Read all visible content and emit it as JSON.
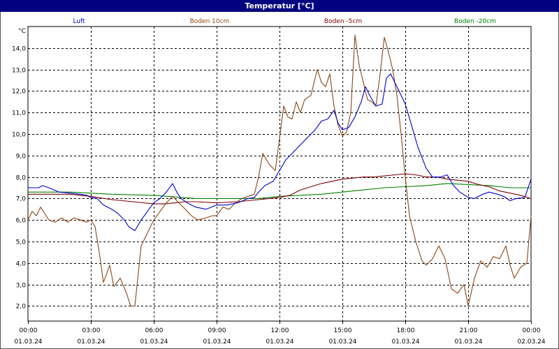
{
  "window": {
    "title": "Temperatur [°C]"
  },
  "chart_data": {
    "type": "line",
    "title": "Temperatur [°C]",
    "ylabel": "°C",
    "xlabel": "",
    "ylim": [
      1.3,
      15.0
    ],
    "xlim": [
      0,
      24
    ],
    "grid": true,
    "legend_position": "top",
    "y_ticks": [
      {
        "v": 2.0,
        "label": "2,0"
      },
      {
        "v": 3.0,
        "label": "3,0"
      },
      {
        "v": 4.0,
        "label": "4,0"
      },
      {
        "v": 5.0,
        "label": "5,0"
      },
      {
        "v": 6.0,
        "label": "6,0"
      },
      {
        "v": 7.0,
        "label": "7,0"
      },
      {
        "v": 8.0,
        "label": "8,0"
      },
      {
        "v": 9.0,
        "label": "9,0"
      },
      {
        "v": 10.0,
        "label": "10,0"
      },
      {
        "v": 11.0,
        "label": "11,0"
      },
      {
        "v": 12.0,
        "label": "12,0"
      },
      {
        "v": 13.0,
        "label": "13,0"
      },
      {
        "v": 14.0,
        "label": "14,0"
      }
    ],
    "x_ticks": [
      {
        "v": 0,
        "time": "00:00",
        "date": "01.03.24"
      },
      {
        "v": 3,
        "time": "03:00",
        "date": "01.03.24"
      },
      {
        "v": 6,
        "time": "06:00",
        "date": "01.03.24"
      },
      {
        "v": 9,
        "time": "09:00",
        "date": "01.03.24"
      },
      {
        "v": 12,
        "time": "12:00",
        "date": "01.03.24"
      },
      {
        "v": 15,
        "time": "15:00",
        "date": "01.03.24"
      },
      {
        "v": 18,
        "time": "18:00",
        "date": "01.03.24"
      },
      {
        "v": 21,
        "time": "21:00",
        "date": "01.03.24"
      },
      {
        "v": 24,
        "time": "00:00",
        "date": "02.03.24"
      }
    ],
    "series": [
      {
        "name": "Luft",
        "color": "#0000cc",
        "points": [
          [
            0,
            7.5
          ],
          [
            0.5,
            7.5
          ],
          [
            0.7,
            7.6
          ],
          [
            1.0,
            7.5
          ],
          [
            1.5,
            7.3
          ],
          [
            2.0,
            7.25
          ],
          [
            2.5,
            7.2
          ],
          [
            2.8,
            7.15
          ],
          [
            3.0,
            7.05
          ],
          [
            3.3,
            7.0
          ],
          [
            3.6,
            6.7
          ],
          [
            4.0,
            6.5
          ],
          [
            4.3,
            6.3
          ],
          [
            4.6,
            6.0
          ],
          [
            4.8,
            5.7
          ],
          [
            5.1,
            5.5
          ],
          [
            5.4,
            6.0
          ],
          [
            5.7,
            6.4
          ],
          [
            6.0,
            6.8
          ],
          [
            6.3,
            7.0
          ],
          [
            6.6,
            7.3
          ],
          [
            6.9,
            7.7
          ],
          [
            7.1,
            7.3
          ],
          [
            7.3,
            7.0
          ],
          [
            7.6,
            6.8
          ],
          [
            8.0,
            6.6
          ],
          [
            8.5,
            6.5
          ],
          [
            9.0,
            6.7
          ],
          [
            9.5,
            6.7
          ],
          [
            10.0,
            6.8
          ],
          [
            10.5,
            7.0
          ],
          [
            10.8,
            7.05
          ],
          [
            11.0,
            7.3
          ],
          [
            11.3,
            7.6
          ],
          [
            11.7,
            7.8
          ],
          [
            12.0,
            8.3
          ],
          [
            12.3,
            8.8
          ],
          [
            12.7,
            9.2
          ],
          [
            13.0,
            9.5
          ],
          [
            13.3,
            9.8
          ],
          [
            13.7,
            10.2
          ],
          [
            14.0,
            10.6
          ],
          [
            14.3,
            10.7
          ],
          [
            14.6,
            11.1
          ],
          [
            14.8,
            10.5
          ],
          [
            15.0,
            10.2
          ],
          [
            15.3,
            10.3
          ],
          [
            15.6,
            10.8
          ],
          [
            15.9,
            11.5
          ],
          [
            16.1,
            12.2
          ],
          [
            16.3,
            11.8
          ],
          [
            16.6,
            11.3
          ],
          [
            16.9,
            11.4
          ],
          [
            17.1,
            12.6
          ],
          [
            17.3,
            12.8
          ],
          [
            17.5,
            12.4
          ],
          [
            17.7,
            12.0
          ],
          [
            18.0,
            11.4
          ],
          [
            18.3,
            10.4
          ],
          [
            18.6,
            9.4
          ],
          [
            19.0,
            8.4
          ],
          [
            19.3,
            8.0
          ],
          [
            19.7,
            8.0
          ],
          [
            20.0,
            8.1
          ],
          [
            20.3,
            7.6
          ],
          [
            20.6,
            7.3
          ],
          [
            21.0,
            7.05
          ],
          [
            21.3,
            7.0
          ],
          [
            21.7,
            7.2
          ],
          [
            22.0,
            7.3
          ],
          [
            22.4,
            7.2
          ],
          [
            22.7,
            7.1
          ],
          [
            23.0,
            6.9
          ],
          [
            23.3,
            7.0
          ],
          [
            23.7,
            7.05
          ],
          [
            24.0,
            7.9
          ]
        ]
      },
      {
        "name": "Boden 10cm",
        "color": "#8b4513",
        "points": [
          [
            0,
            6.0
          ],
          [
            0.2,
            6.4
          ],
          [
            0.4,
            6.2
          ],
          [
            0.6,
            6.6
          ],
          [
            0.8,
            6.3
          ],
          [
            1.0,
            6.0
          ],
          [
            1.3,
            5.9
          ],
          [
            1.6,
            6.1
          ],
          [
            1.9,
            5.9
          ],
          [
            2.2,
            6.1
          ],
          [
            2.5,
            6.0
          ],
          [
            2.8,
            5.9
          ],
          [
            3.0,
            6.0
          ],
          [
            3.2,
            5.7
          ],
          [
            3.4,
            4.5
          ],
          [
            3.6,
            3.1
          ],
          [
            3.9,
            3.9
          ],
          [
            4.1,
            2.9
          ],
          [
            4.4,
            3.3
          ],
          [
            4.7,
            2.6
          ],
          [
            4.9,
            2.0
          ],
          [
            5.1,
            2.0
          ],
          [
            5.4,
            4.8
          ],
          [
            5.7,
            5.4
          ],
          [
            6.0,
            6.0
          ],
          [
            6.3,
            6.4
          ],
          [
            6.6,
            6.8
          ],
          [
            6.9,
            7.1
          ],
          [
            7.2,
            6.8
          ],
          [
            7.5,
            6.5
          ],
          [
            7.8,
            6.2
          ],
          [
            8.1,
            6.0
          ],
          [
            8.5,
            6.1
          ],
          [
            8.8,
            6.2
          ],
          [
            9.0,
            6.2
          ],
          [
            9.3,
            6.6
          ],
          [
            9.6,
            6.5
          ],
          [
            9.9,
            6.8
          ],
          [
            10.2,
            7.0
          ],
          [
            10.5,
            7.1
          ],
          [
            10.8,
            7.2
          ],
          [
            11.0,
            8.0
          ],
          [
            11.2,
            9.1
          ],
          [
            11.5,
            8.6
          ],
          [
            11.8,
            8.3
          ],
          [
            12.0,
            9.8
          ],
          [
            12.2,
            11.3
          ],
          [
            12.4,
            10.8
          ],
          [
            12.6,
            10.7
          ],
          [
            12.8,
            11.5
          ],
          [
            13.0,
            11.0
          ],
          [
            13.2,
            11.6
          ],
          [
            13.5,
            11.8
          ],
          [
            13.8,
            13.0
          ],
          [
            14.0,
            12.4
          ],
          [
            14.2,
            12.2
          ],
          [
            14.4,
            12.8
          ],
          [
            14.6,
            11.3
          ],
          [
            14.8,
            10.4
          ],
          [
            15.0,
            9.9
          ],
          [
            15.2,
            10.1
          ],
          [
            15.4,
            11.0
          ],
          [
            15.6,
            14.6
          ],
          [
            15.8,
            13.2
          ],
          [
            16.0,
            12.4
          ],
          [
            16.2,
            11.6
          ],
          [
            16.4,
            11.5
          ],
          [
            16.6,
            11.3
          ],
          [
            16.8,
            12.8
          ],
          [
            17.0,
            14.5
          ],
          [
            17.2,
            13.8
          ],
          [
            17.4,
            13.0
          ],
          [
            17.6,
            11.8
          ],
          [
            17.8,
            10.0
          ],
          [
            18.0,
            8.0
          ],
          [
            18.2,
            6.2
          ],
          [
            18.5,
            5.0
          ],
          [
            18.8,
            4.1
          ],
          [
            19.0,
            3.9
          ],
          [
            19.3,
            4.2
          ],
          [
            19.6,
            4.8
          ],
          [
            19.9,
            4.2
          ],
          [
            20.2,
            2.8
          ],
          [
            20.5,
            2.6
          ],
          [
            20.8,
            3.0
          ],
          [
            21.0,
            2.0
          ],
          [
            21.3,
            3.3
          ],
          [
            21.6,
            4.1
          ],
          [
            21.9,
            3.8
          ],
          [
            22.2,
            4.3
          ],
          [
            22.5,
            4.2
          ],
          [
            22.8,
            4.8
          ],
          [
            23.0,
            3.9
          ],
          [
            23.2,
            3.3
          ],
          [
            23.5,
            3.8
          ],
          [
            23.8,
            4.0
          ],
          [
            24.0,
            6.2
          ]
        ]
      },
      {
        "name": "Boden -5cm",
        "color": "#800000",
        "points": [
          [
            0,
            7.2
          ],
          [
            1.0,
            7.2
          ],
          [
            2.0,
            7.2
          ],
          [
            2.5,
            7.15
          ],
          [
            3.0,
            7.1
          ],
          [
            4.0,
            6.95
          ],
          [
            5.0,
            6.85
          ],
          [
            6.0,
            6.75
          ],
          [
            6.5,
            6.75
          ],
          [
            7.0,
            6.8
          ],
          [
            7.5,
            6.85
          ],
          [
            8.0,
            6.85
          ],
          [
            9.0,
            6.8
          ],
          [
            10.0,
            6.85
          ],
          [
            11.0,
            6.95
          ],
          [
            12.0,
            7.05
          ],
          [
            12.5,
            7.15
          ],
          [
            13.0,
            7.4
          ],
          [
            13.5,
            7.55
          ],
          [
            14.0,
            7.7
          ],
          [
            14.5,
            7.8
          ],
          [
            15.0,
            7.9
          ],
          [
            15.5,
            7.95
          ],
          [
            16.0,
            8.0
          ],
          [
            16.5,
            8.0
          ],
          [
            17.0,
            8.05
          ],
          [
            17.5,
            8.1
          ],
          [
            18.0,
            8.15
          ],
          [
            18.5,
            8.1
          ],
          [
            19.0,
            8.0
          ],
          [
            19.5,
            8.0
          ],
          [
            20.0,
            7.9
          ],
          [
            20.5,
            7.85
          ],
          [
            21.0,
            7.8
          ],
          [
            21.5,
            7.65
          ],
          [
            22.0,
            7.55
          ],
          [
            22.5,
            7.35
          ],
          [
            23.0,
            7.25
          ],
          [
            23.5,
            7.15
          ],
          [
            24.0,
            7.0
          ]
        ]
      },
      {
        "name": "Boden -20cm",
        "color": "#008000",
        "points": [
          [
            0,
            7.3
          ],
          [
            2.0,
            7.3
          ],
          [
            3.0,
            7.25
          ],
          [
            4.0,
            7.2
          ],
          [
            6.0,
            7.15
          ],
          [
            8.0,
            7.0
          ],
          [
            10.0,
            7.0
          ],
          [
            11.0,
            7.0
          ],
          [
            12.0,
            7.1
          ],
          [
            13.0,
            7.15
          ],
          [
            14.0,
            7.2
          ],
          [
            15.0,
            7.3
          ],
          [
            16.0,
            7.4
          ],
          [
            17.0,
            7.5
          ],
          [
            18.0,
            7.55
          ],
          [
            19.0,
            7.6
          ],
          [
            20.0,
            7.7
          ],
          [
            21.0,
            7.65
          ],
          [
            22.0,
            7.6
          ],
          [
            23.0,
            7.5
          ],
          [
            24.0,
            7.5
          ]
        ]
      }
    ]
  }
}
